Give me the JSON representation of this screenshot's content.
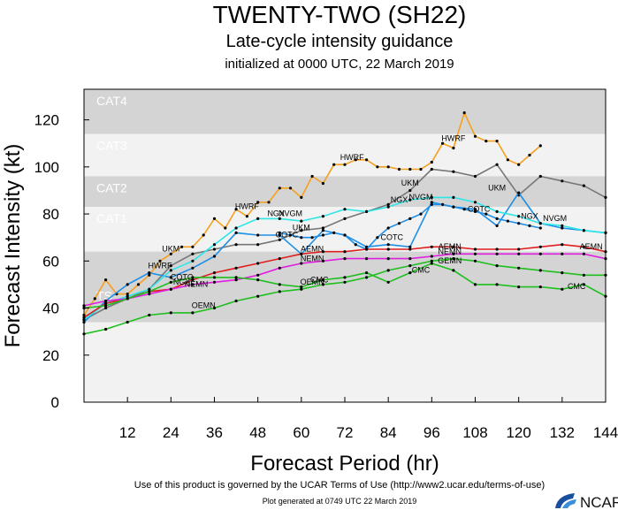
{
  "chart_data": {
    "type": "line",
    "title": "TWENTY-TWO (SH22)",
    "subtitle": "Late-cycle intensity guidance",
    "init_text": "initialized at 0000 UTC, 22 March 2019",
    "xlabel": "Forecast Period (hr)",
    "ylabel": "Forecast Intensity (kt)",
    "xlim": [
      0,
      144
    ],
    "ylim": [
      0,
      133
    ],
    "x_ticks": [
      "12",
      "24",
      "36",
      "48",
      "60",
      "72",
      "84",
      "96",
      "108",
      "120",
      "132",
      "144"
    ],
    "y_ticks": [
      "0",
      "20",
      "40",
      "60",
      "80",
      "100",
      "120"
    ],
    "bands": [
      {
        "name": "CAT4",
        "lo": 114,
        "hi": 133,
        "color": "#d4d4d4"
      },
      {
        "name": "CAT3",
        "lo": 96,
        "hi": 114,
        "color": "#f2f2f2"
      },
      {
        "name": "CAT2",
        "lo": 83,
        "hi": 96,
        "color": "#d4d4d4"
      },
      {
        "name": "CAT1",
        "lo": 64,
        "hi": 83,
        "color": "#f2f2f2"
      },
      {
        "name": "TS",
        "lo": 34,
        "hi": 64,
        "color": "#d4d4d4"
      }
    ],
    "series": [
      {
        "name": "HWRF",
        "color": "#f5a01e",
        "x": [
          0,
          3,
          6,
          9,
          12,
          15,
          18,
          21,
          24,
          27,
          30,
          33,
          36,
          39,
          42,
          45,
          48,
          51,
          54,
          57,
          60,
          63,
          66,
          69,
          72,
          75,
          78,
          81,
          84,
          87,
          90,
          93,
          96,
          99,
          102,
          105,
          108,
          111,
          114,
          117,
          120,
          123,
          126
        ],
        "y": [
          37,
          44,
          52,
          46,
          46,
          50,
          54,
          60,
          63,
          66,
          66,
          71,
          78,
          74,
          82,
          79,
          85,
          85,
          91,
          91,
          87,
          96,
          93,
          101,
          101,
          103,
          103,
          100,
          100,
          99,
          99,
          99,
          102,
          110,
          108,
          123,
          113,
          111,
          111,
          103,
          101,
          105,
          109
        ]
      },
      {
        "name": "UKM",
        "color": "#777777",
        "x": [
          0,
          6,
          12,
          18,
          24,
          30,
          36,
          42,
          48,
          54,
          60,
          66,
          72,
          78,
          84,
          90,
          96,
          102,
          108,
          114,
          120,
          126,
          132,
          138,
          144
        ],
        "y": [
          35,
          40,
          44,
          48,
          58,
          63,
          65,
          67,
          67,
          69,
          73,
          74,
          78,
          81,
          84,
          90,
          99,
          98,
          96,
          101,
          88,
          96,
          94,
          92,
          87
        ]
      },
      {
        "name": "NGX",
        "color": "#1e8fe6",
        "x": [
          0,
          6,
          12,
          18,
          24,
          30,
          36,
          42,
          48,
          54,
          60,
          66,
          72,
          78,
          84,
          90,
          96,
          102,
          108,
          114,
          120,
          126,
          132,
          138,
          144
        ],
        "y": [
          34,
          43,
          50,
          55,
          53,
          57,
          62,
          72,
          71,
          71,
          63,
          73,
          71,
          66,
          67,
          66,
          85,
          83,
          82,
          75,
          89,
          76,
          74,
          73,
          72
        ]
      },
      {
        "name": "NVGM",
        "color": "#2ee6e6",
        "x": [
          0,
          6,
          12,
          18,
          24,
          30,
          36,
          42,
          48,
          54,
          60,
          66,
          72,
          78,
          84,
          90,
          96,
          102,
          108,
          114,
          120,
          126,
          132,
          138,
          144
        ],
        "y": [
          35,
          42,
          45,
          48,
          56,
          60,
          67,
          74,
          78,
          78,
          77,
          79,
          82,
          81,
          83,
          86,
          87,
          87,
          85,
          81,
          79,
          76,
          75,
          73,
          72
        ]
      },
      {
        "name": "COTC",
        "color": "#1e8fe6",
        "x": [
          54,
          57,
          60,
          63,
          66,
          69,
          72,
          75,
          78,
          81,
          84,
          87,
          90,
          93,
          96,
          99,
          102,
          105,
          108,
          111,
          114,
          117,
          120,
          123,
          126
        ],
        "y": [
          72,
          71,
          70,
          70,
          71,
          72,
          71,
          67,
          65,
          70,
          74,
          76,
          78,
          80,
          84,
          84,
          83,
          82,
          81,
          80,
          78,
          77,
          76,
          75,
          74
        ]
      },
      {
        "name": "AEMN",
        "color": "#e01e1e",
        "x": [
          0,
          6,
          12,
          18,
          24,
          30,
          36,
          42,
          48,
          54,
          60,
          66,
          72,
          78,
          84,
          90,
          96,
          102,
          108,
          114,
          120,
          126,
          132,
          138,
          144
        ],
        "y": [
          36,
          42,
          44,
          47,
          48,
          52,
          55,
          57,
          59,
          61,
          63,
          64,
          64,
          65,
          65,
          65,
          66,
          66,
          65,
          65,
          65,
          66,
          67,
          66,
          64
        ]
      },
      {
        "name": "NEMN",
        "color": "#e01ee0",
        "x": [
          0,
          6,
          12,
          18,
          24,
          30,
          36,
          42,
          48,
          54,
          60,
          66,
          72,
          78,
          84,
          90,
          96,
          102,
          108,
          114,
          120,
          126,
          132,
          138,
          144
        ],
        "y": [
          41,
          43,
          44,
          46,
          48,
          50,
          51,
          52,
          54,
          57,
          59,
          60,
          61,
          61,
          61,
          61,
          62,
          63,
          63,
          63,
          63,
          63,
          63,
          63,
          61
        ]
      },
      {
        "name": "CMC",
        "color": "#1fbf1f",
        "x": [
          0,
          6,
          12,
          18,
          24,
          30,
          36,
          42,
          48,
          54,
          60,
          66,
          72,
          78,
          84,
          90,
          96,
          102,
          108,
          114,
          120,
          126,
          132,
          138,
          144
        ],
        "y": [
          40,
          41,
          44,
          47,
          51,
          53,
          53,
          53,
          52,
          50,
          49,
          52,
          53,
          55,
          51,
          55,
          59,
          56,
          50,
          50,
          49,
          49,
          48,
          50,
          45
        ]
      },
      {
        "name": "GEMN",
        "color": "#1fbf1f",
        "x": [
          0,
          6,
          12,
          18,
          24,
          30,
          36,
          42,
          48,
          54,
          60,
          66,
          72,
          78,
          84,
          90,
          96,
          102,
          108,
          114,
          120,
          126,
          132,
          138,
          144
        ],
        "y": [
          29,
          31,
          34,
          37,
          38,
          38,
          40,
          43,
          45,
          47,
          48,
          50,
          51,
          53,
          56,
          58,
          60,
          61,
          60,
          58,
          57,
          56,
          55,
          54,
          54
        ]
      }
    ],
    "labels": [
      {
        "text": "HWRF",
        "x": 74,
        "y": 103
      },
      {
        "text": "HWRF",
        "x": 102,
        "y": 111
      },
      {
        "text": "HWRF",
        "x": 45,
        "y": 82
      },
      {
        "text": "HWRF",
        "x": 21,
        "y": 57
      },
      {
        "text": "UKM",
        "x": 90,
        "y": 92
      },
      {
        "text": "UKM",
        "x": 114,
        "y": 90
      },
      {
        "text": "UKM",
        "x": 60,
        "y": 73
      },
      {
        "text": "UKM",
        "x": 24,
        "y": 64
      },
      {
        "text": "NGX",
        "x": 53,
        "y": 79
      },
      {
        "text": "NVGM",
        "x": 57,
        "y": 79
      },
      {
        "text": "NGX",
        "x": 87,
        "y": 85
      },
      {
        "text": "NVGM",
        "x": 93,
        "y": 86
      },
      {
        "text": "NGX",
        "x": 123,
        "y": 78
      },
      {
        "text": "NVGM",
        "x": 130,
        "y": 77
      },
      {
        "text": "COTC",
        "x": 109,
        "y": 81
      },
      {
        "text": "COTC",
        "x": 85,
        "y": 69
      },
      {
        "text": "COTC",
        "x": 56,
        "y": 70
      },
      {
        "text": "COTC",
        "x": 27,
        "y": 52
      },
      {
        "text": "NGX",
        "x": 27,
        "y": 50
      },
      {
        "text": "AEMN",
        "x": 63,
        "y": 64
      },
      {
        "text": "AEMN",
        "x": 101,
        "y": 65
      },
      {
        "text": "AEMN",
        "x": 140,
        "y": 65
      },
      {
        "text": "NEMN",
        "x": 63,
        "y": 60
      },
      {
        "text": "NEMN",
        "x": 101,
        "y": 63
      },
      {
        "text": "NEMN",
        "x": 31,
        "y": 49
      },
      {
        "text": "GEMN",
        "x": 101,
        "y": 59
      },
      {
        "text": "OEMN",
        "x": 63,
        "y": 50
      },
      {
        "text": "OEMN",
        "x": 33,
        "y": 40
      },
      {
        "text": "CMC",
        "x": 65,
        "y": 51
      },
      {
        "text": "CMC",
        "x": 93,
        "y": 55
      },
      {
        "text": "CMC",
        "x": 136,
        "y": 48
      }
    ]
  },
  "footer": {
    "terms": "Use of this product is governed by the UCAR Terms of Use (http://www2.ucar.edu/terms-of-use)",
    "generated": "Plot generated at 0749 UTC   22 March 2019",
    "logo_text": "NCAR"
  }
}
